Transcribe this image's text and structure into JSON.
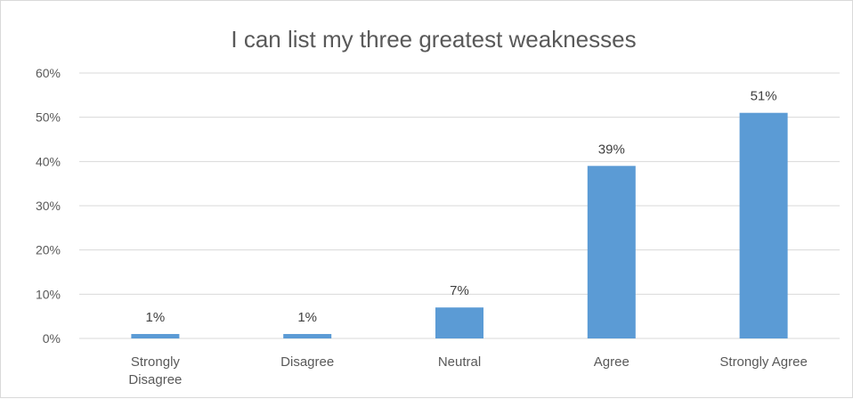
{
  "chart_data": {
    "type": "bar",
    "title": "I can list my three greatest weaknesses",
    "categories": [
      [
        "Strongly",
        "Disagree"
      ],
      [
        "Disagree"
      ],
      [
        "Neutral"
      ],
      [
        "Agree"
      ],
      [
        "Strongly Agree"
      ]
    ],
    "values": [
      1,
      1,
      7,
      39,
      51
    ],
    "data_labels": [
      "1%",
      "1%",
      "7%",
      "39%",
      "51%"
    ],
    "yticks": [
      "0%",
      "10%",
      "20%",
      "30%",
      "40%",
      "50%",
      "60%"
    ],
    "ylim": [
      0,
      60
    ],
    "grid": true,
    "bar_color": "#5b9bd5",
    "grid_color": "#d9d9d9"
  }
}
